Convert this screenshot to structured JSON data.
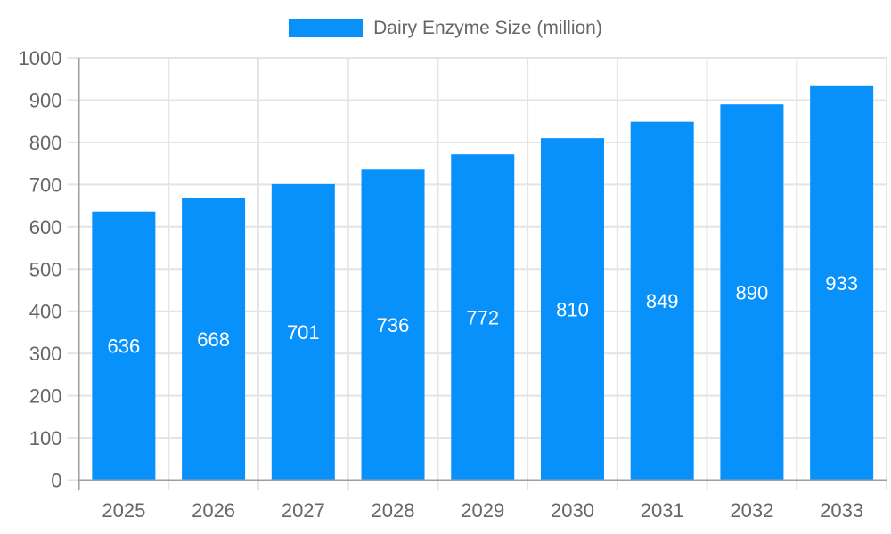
{
  "legend": {
    "label": "Dairy Enzyme Size (million)"
  },
  "chart_data": {
    "type": "bar",
    "title": "Dairy Enzyme Size (million)",
    "series_name": "Dairy Enzyme Size (million)",
    "categories": [
      "2025",
      "2026",
      "2027",
      "2028",
      "2029",
      "2030",
      "2031",
      "2032",
      "2033"
    ],
    "values": [
      636,
      668,
      701,
      736,
      772,
      810,
      849,
      890,
      933
    ],
    "xlabel": "",
    "ylabel": "",
    "ylim": [
      0,
      1000
    ],
    "ytick_step": 100,
    "ytick_labels": [
      "0",
      "100",
      "200",
      "300",
      "400",
      "500",
      "600",
      "700",
      "800",
      "900",
      "1000"
    ],
    "grid": "both",
    "legend_position": "top-center",
    "value_label_position": "inside-center",
    "colors": {
      "bar": "#0890fb",
      "value_label": "#ffffff",
      "axis_line": "#9e9e9e",
      "grid_line": "#e4e4e4",
      "tick_text": "#666666",
      "legend_text": "#666666",
      "background": "#ffffff"
    }
  }
}
